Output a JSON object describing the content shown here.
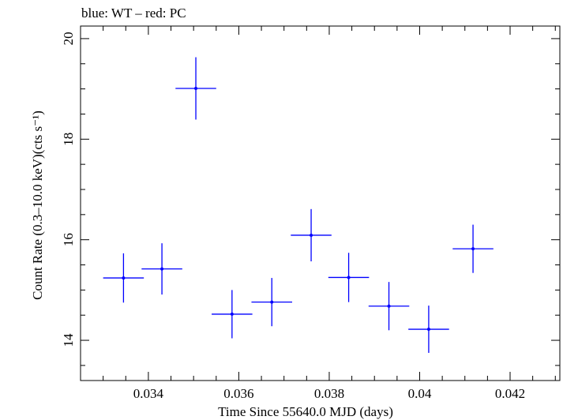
{
  "chart_data": {
    "type": "scatter",
    "title": "blue: WT – red: PC",
    "xlabel": "Time Since 55640.0 MJD (days)",
    "ylabel": "Count Rate (0.3–10.0 keV)(cts s⁻¹)",
    "xlim": [
      0.0325,
      0.0431
    ],
    "ylim": [
      13.2,
      20.25
    ],
    "x_ticks": [
      0.034,
      0.036,
      0.038,
      0.04,
      0.042
    ],
    "x_tick_labels": [
      "0.034",
      "0.036",
      "0.038",
      "0.04",
      "0.042"
    ],
    "y_ticks": [
      14,
      16,
      18,
      20
    ],
    "y_tick_labels": [
      "14",
      "16",
      "18",
      "20"
    ],
    "grid": false,
    "series": [
      {
        "color": "#0000ff",
        "points": [
          {
            "x": 0.03345,
            "y": 15.24,
            "xerr": 0.00045,
            "yerr": 0.49
          },
          {
            "x": 0.0343,
            "y": 15.42,
            "xerr": 0.00045,
            "yerr": 0.51
          },
          {
            "x": 0.03505,
            "y": 19.01,
            "xerr": 0.00045,
            "yerr": 0.62
          },
          {
            "x": 0.03585,
            "y": 14.52,
            "xerr": 0.00045,
            "yerr": 0.48
          },
          {
            "x": 0.03673,
            "y": 14.76,
            "xerr": 0.00045,
            "yerr": 0.48
          },
          {
            "x": 0.0376,
            "y": 16.09,
            "xerr": 0.00045,
            "yerr": 0.52
          },
          {
            "x": 0.03843,
            "y": 15.25,
            "xerr": 0.00045,
            "yerr": 0.49
          },
          {
            "x": 0.03932,
            "y": 14.68,
            "xerr": 0.00045,
            "yerr": 0.48
          },
          {
            "x": 0.0402,
            "y": 14.22,
            "xerr": 0.00045,
            "yerr": 0.47
          },
          {
            "x": 0.04118,
            "y": 15.82,
            "xerr": 0.00045,
            "yerr": 0.48
          }
        ]
      }
    ]
  }
}
